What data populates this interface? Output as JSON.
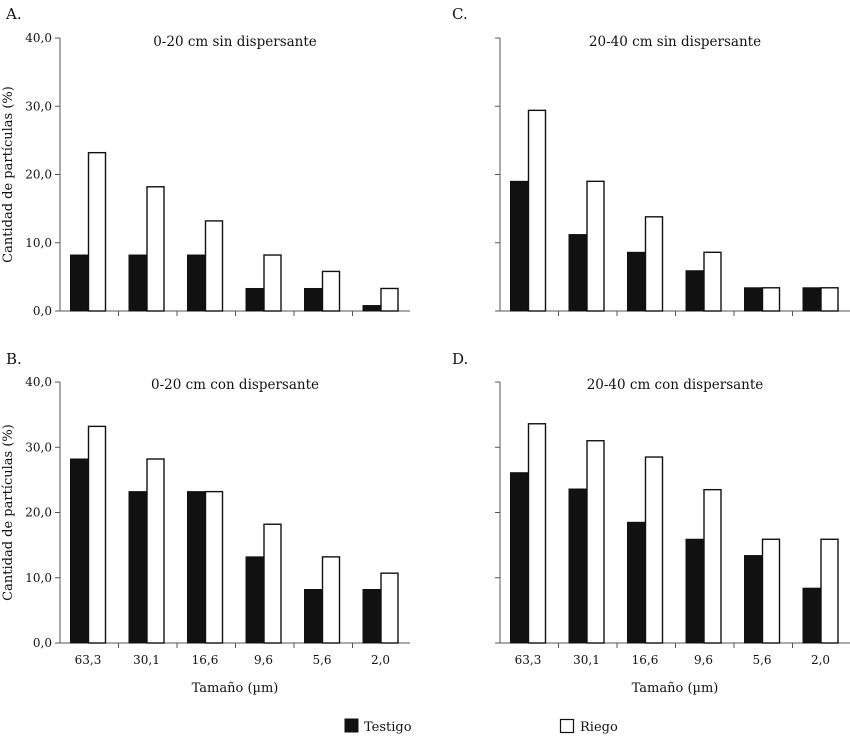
{
  "chart_data": [
    {
      "type": "bar",
      "letter": "A.",
      "title": "0-20 cm sin dispersante",
      "ylabel": "Cantidad de partículas (%)",
      "xlabel": "",
      "yticks": [
        "0,0",
        "10,0",
        "20,0",
        "30,0",
        "40,0"
      ],
      "ylim": [
        0,
        40
      ],
      "categories": [
        "63,3",
        "30,1",
        "16,6",
        "9,6",
        "5,6",
        "2,0"
      ],
      "series": [
        {
          "name": "Testigo",
          "color": "#111111",
          "values": [
            8.2,
            8.2,
            8.2,
            3.3,
            3.3,
            0.8
          ]
        },
        {
          "name": "Riego",
          "color": "#ffffff",
          "values": [
            23.2,
            18.2,
            13.2,
            8.2,
            5.8,
            3.3
          ]
        }
      ]
    },
    {
      "type": "bar",
      "letter": "C.",
      "title": "20-40 cm sin dispersante",
      "ylabel": "",
      "xlabel": "",
      "yticks": [
        "",
        "",
        "",
        "",
        ""
      ],
      "ylim": [
        0,
        40
      ],
      "categories": [
        "63,3",
        "30,1",
        "16,6",
        "9,6",
        "5,6",
        "2,0"
      ],
      "series": [
        {
          "name": "Testigo",
          "color": "#111111",
          "values": [
            19.0,
            11.2,
            8.6,
            5.9,
            3.4,
            3.4
          ]
        },
        {
          "name": "Riego",
          "color": "#ffffff",
          "values": [
            29.4,
            19.0,
            13.8,
            8.6,
            3.4,
            3.4
          ]
        }
      ]
    },
    {
      "type": "bar",
      "letter": "B.",
      "title": "0-20 cm con dispersante",
      "ylabel": "Cantidad de partículas (%)",
      "xlabel": "Tamaño (µm)",
      "yticks": [
        "0,0",
        "10,0",
        "20,0",
        "30,0",
        "40,0"
      ],
      "ylim": [
        0,
        40
      ],
      "categories": [
        "63,3",
        "30,1",
        "16,6",
        "9,6",
        "5,6",
        "2,0"
      ],
      "series": [
        {
          "name": "Testigo",
          "color": "#111111",
          "values": [
            28.2,
            23.2,
            23.2,
            13.2,
            8.2,
            8.2
          ]
        },
        {
          "name": "Riego",
          "color": "#ffffff",
          "values": [
            33.2,
            28.2,
            23.2,
            18.2,
            13.2,
            10.7
          ]
        }
      ]
    },
    {
      "type": "bar",
      "letter": "D.",
      "title": "20-40 cm con dispersante",
      "ylabel": "",
      "xlabel": "Tamaño (µm)",
      "yticks": [
        "",
        "",
        "",
        "",
        ""
      ],
      "ylim": [
        0,
        40
      ],
      "categories": [
        "63,3",
        "30,1",
        "16,6",
        "9,6",
        "5,6",
        "2,0"
      ],
      "series": [
        {
          "name": "Testigo",
          "color": "#111111",
          "values": [
            26.1,
            23.6,
            18.5,
            15.9,
            13.4,
            8.4
          ]
        },
        {
          "name": "Riego",
          "color": "#ffffff",
          "values": [
            33.6,
            31.0,
            28.5,
            23.5,
            15.9,
            15.9
          ]
        }
      ]
    }
  ],
  "legend": {
    "placement": "bottom-center",
    "items": [
      {
        "label": "Testigo",
        "color": "#111111"
      },
      {
        "label": "Riego",
        "color": "#ffffff"
      }
    ]
  }
}
